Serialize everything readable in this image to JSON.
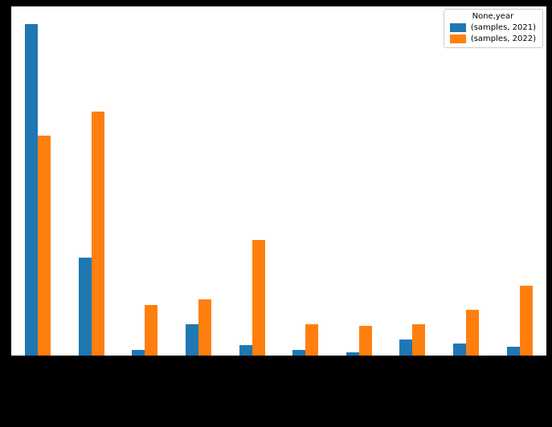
{
  "figure": {
    "background_color": "#000000",
    "plot_background_color": "#ffffff"
  },
  "legend": {
    "title": "None,year",
    "entries": [
      {
        "label": "(samples, 2021)",
        "color": "#1f77b4"
      },
      {
        "label": "(samples, 2022)",
        "color": "#ff7f0e"
      }
    ]
  },
  "chart_data": {
    "type": "bar",
    "title": "",
    "xlabel": "",
    "ylabel": "",
    "categories": [
      "",
      "",
      "",
      "",
      "",
      "",
      "",
      "",
      "",
      ""
    ],
    "series": [
      {
        "name": "(samples, 2021)",
        "color": "#1f77b4",
        "values": [
          95,
          28,
          1.5,
          9,
          3,
          1.5,
          1,
          4.5,
          3.5,
          2.5
        ]
      },
      {
        "name": "(samples, 2022)",
        "color": "#ff7f0e",
        "values": [
          63,
          70,
          14.5,
          16,
          33,
          9,
          8.5,
          9,
          13,
          20
        ]
      }
    ],
    "ylim": [
      0,
      100
    ],
    "grid": false,
    "legend_position": "upper right"
  }
}
